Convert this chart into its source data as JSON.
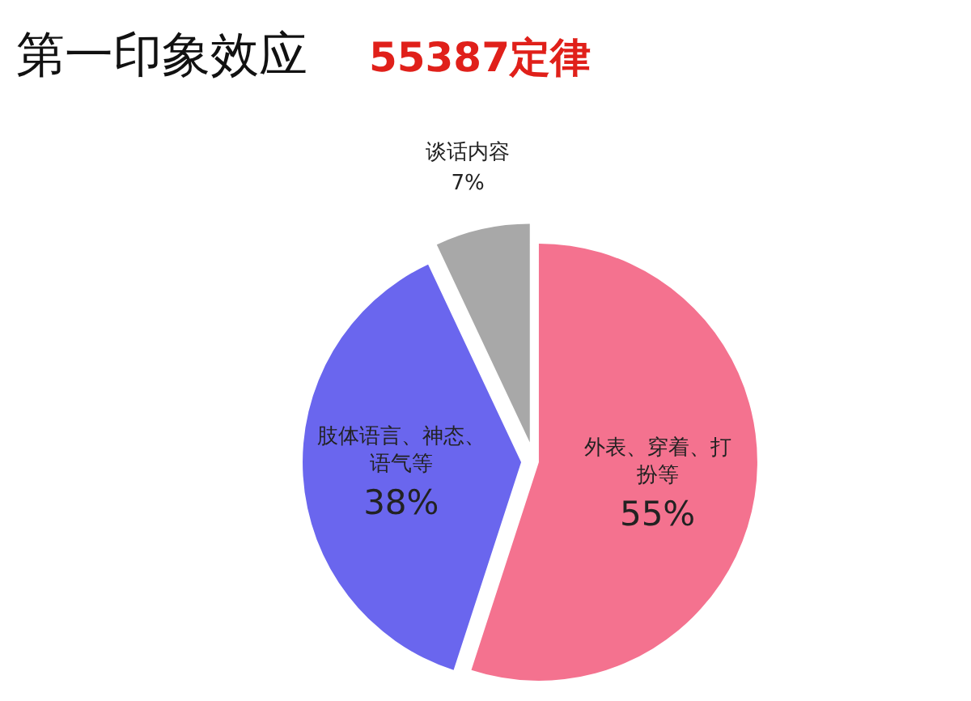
{
  "chart_data": {
    "type": "pie",
    "title": "第一印象效应",
    "subtitle": "55387定律",
    "categories": [
      "外表、穿着、打扮等",
      "肢体语言、神态、语气等",
      "谈话内容"
    ],
    "values": [
      55,
      38,
      7
    ],
    "colors": [
      "#f4728f",
      "#6a66ee",
      "#a8a8a8"
    ],
    "value_labels": [
      "55%",
      "38%",
      "7%"
    ]
  }
}
